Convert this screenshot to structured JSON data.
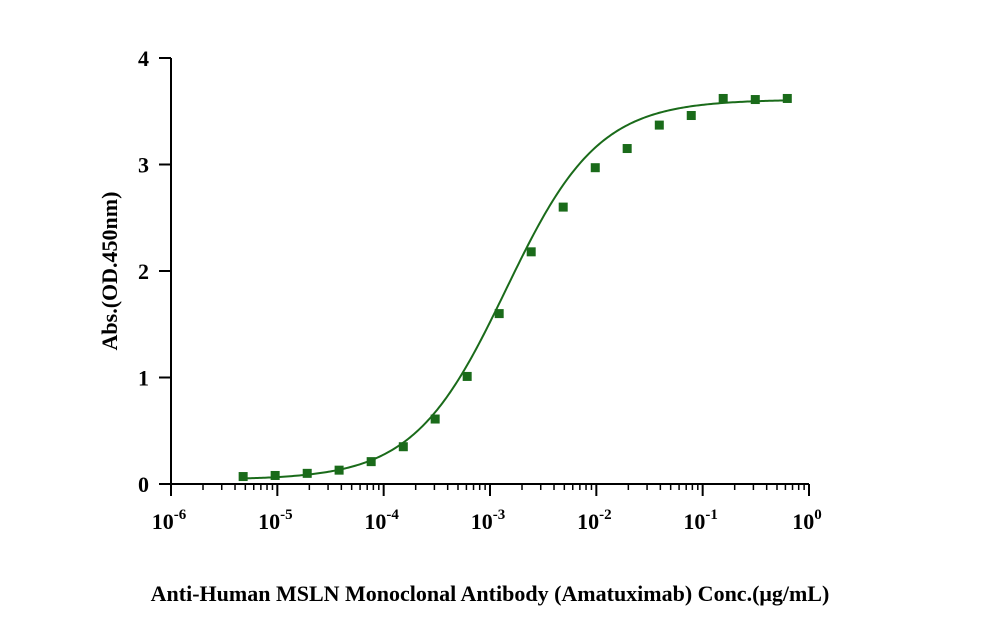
{
  "chart_data": {
    "type": "scatter",
    "title": "",
    "xlabel": "Anti-Human MSLN Monoclonal Antibody (Amatuximab) Conc.(μg/mL)",
    "ylabel": "Abs.(OD.450nm)",
    "xscale": "log10",
    "xlim_exponents": [
      -6,
      0
    ],
    "ylim": [
      0,
      4
    ],
    "x_ticks": [
      {
        "base": "10",
        "exp": "-6"
      },
      {
        "base": "10",
        "exp": "-5"
      },
      {
        "base": "10",
        "exp": "-4"
      },
      {
        "base": "10",
        "exp": "-3"
      },
      {
        "base": "10",
        "exp": "-2"
      },
      {
        "base": "10",
        "exp": "-1"
      },
      {
        "base": "10",
        "exp": "0"
      }
    ],
    "y_ticks": [
      "0",
      "1",
      "2",
      "3",
      "4"
    ],
    "grid": false,
    "color": "#1a6b1a",
    "series": [
      {
        "name": "Amatuximab",
        "x": [
          4.77e-06,
          9.54e-06,
          1.91e-05,
          3.81e-05,
          7.63e-05,
          0.000153,
          0.000305,
          0.00061,
          0.00122,
          0.00244,
          0.00488,
          0.00977,
          0.0195,
          0.0391,
          0.0781,
          0.156,
          0.3125,
          0.625
        ],
        "y": [
          0.07,
          0.08,
          0.1,
          0.13,
          0.21,
          0.35,
          0.61,
          1.01,
          1.6,
          2.18,
          2.6,
          2.97,
          3.15,
          3.37,
          3.46,
          3.62,
          3.61,
          3.62
        ]
      }
    ],
    "fit": {
      "type": "4PL",
      "bottom": 0.04,
      "top": 3.61,
      "log_ec50": -2.85,
      "hill": 1.0
    }
  }
}
